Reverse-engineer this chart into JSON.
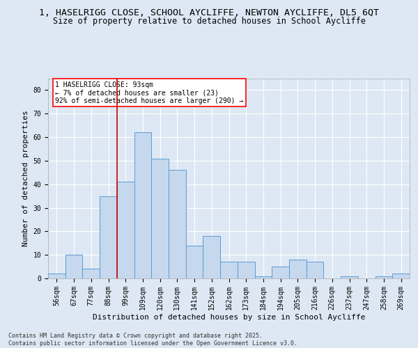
{
  "title_line1": "1, HASELRIGG CLOSE, SCHOOL AYCLIFFE, NEWTON AYCLIFFE, DL5 6QT",
  "title_line2": "Size of property relative to detached houses in School Aycliffe",
  "xlabel": "Distribution of detached houses by size in School Aycliffe",
  "ylabel": "Number of detached properties",
  "annotation_title": "1 HASELRIGG CLOSE: 93sqm",
  "annotation_line2": "← 7% of detached houses are smaller (23)",
  "annotation_line3": "92% of semi-detached houses are larger (290) →",
  "bar_labels": [
    "56sqm",
    "67sqm",
    "77sqm",
    "88sqm",
    "99sqm",
    "109sqm",
    "120sqm",
    "130sqm",
    "141sqm",
    "152sqm",
    "162sqm",
    "173sqm",
    "184sqm",
    "194sqm",
    "205sqm",
    "216sqm",
    "226sqm",
    "237sqm",
    "247sqm",
    "258sqm",
    "269sqm"
  ],
  "bar_values": [
    2,
    10,
    4,
    35,
    41,
    62,
    51,
    46,
    14,
    18,
    7,
    7,
    1,
    5,
    8,
    7,
    0,
    1,
    0,
    1,
    2
  ],
  "bar_color": "#c5d8ed",
  "bar_edge_color": "#5b9bd5",
  "vline_x": 3.5,
  "vline_color": "#cc0000",
  "ylim": [
    0,
    85
  ],
  "yticks": [
    0,
    10,
    20,
    30,
    40,
    50,
    60,
    70,
    80
  ],
  "background_color": "#dde8f4",
  "plot_background": "#dde8f4",
  "grid_color": "#ffffff",
  "title_fontsize": 9.5,
  "subtitle_fontsize": 8.5,
  "axis_label_fontsize": 8,
  "tick_fontsize": 7,
  "footer_text": "Contains HM Land Registry data © Crown copyright and database right 2025.\nContains public sector information licensed under the Open Government Licence v3.0."
}
